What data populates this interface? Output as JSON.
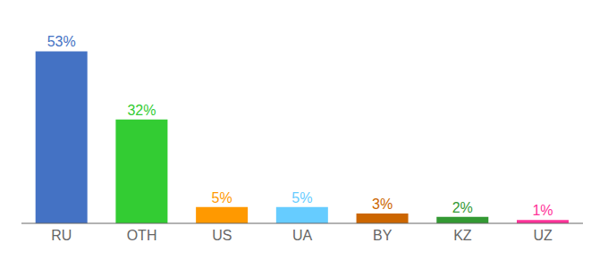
{
  "chart_data": {
    "type": "bar",
    "categories": [
      "RU",
      "OTH",
      "US",
      "UA",
      "BY",
      "KZ",
      "UZ"
    ],
    "values": [
      53,
      32,
      5,
      5,
      3,
      2,
      1
    ],
    "value_labels": [
      "53%",
      "32%",
      "5%",
      "5%",
      "3%",
      "2%",
      "1%"
    ],
    "colors": [
      "#4472c4",
      "#33cc33",
      "#ff9900",
      "#66ccff",
      "#cc6600",
      "#339933",
      "#ff3399"
    ],
    "ylim": [
      0,
      60
    ],
    "data_labels": true,
    "tick_labels": "x",
    "grid": false
  }
}
